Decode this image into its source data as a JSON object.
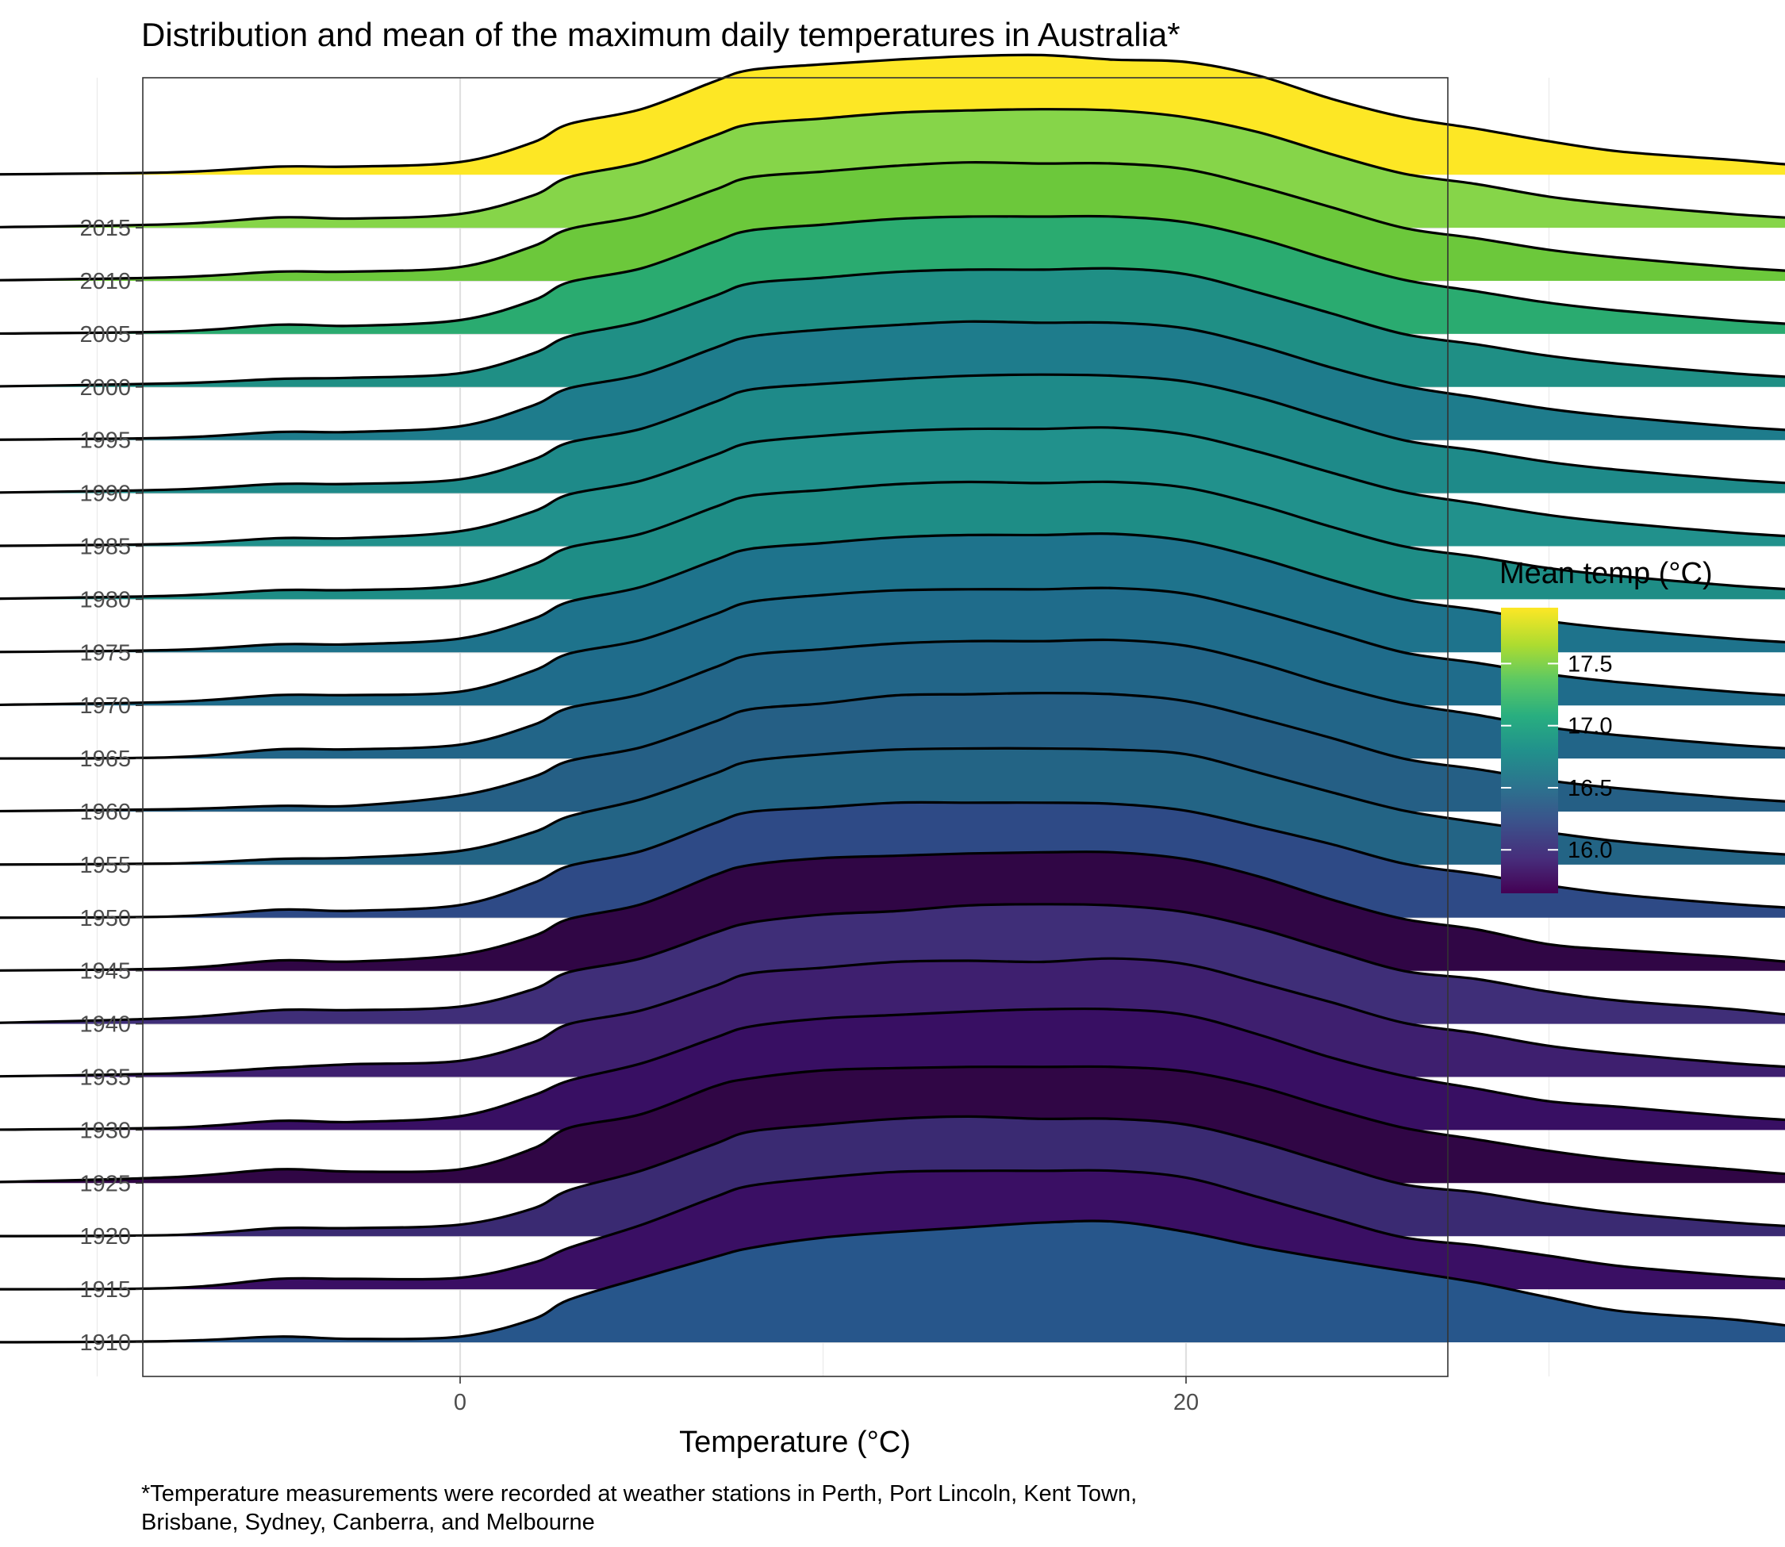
{
  "chart_data": {
    "type": "ridgeline",
    "title": "Distribution and mean of the maximum daily temperatures in Australia*",
    "xlabel": "Temperature (°C)",
    "ylabel": "",
    "caption_lines": [
      "*Temperature measurements were recorded at weather stations in Perth, Port Lincoln, Kent Town,",
      "Brisbane, Sydney, Canberra, and Melbourne"
    ],
    "xlim": [
      -17.5,
      54
    ],
    "x_ticks": [
      0,
      20,
      40
    ],
    "x_minor_ticks": [
      -10,
      10,
      30,
      50
    ],
    "density_range": [
      -14,
      51
    ],
    "grid": true,
    "theme": "bw",
    "legend": {
      "title": "Mean temp (°C)",
      "position": "right",
      "range": [
        15.65,
        17.95
      ],
      "ticks": [
        16.0,
        16.5,
        17.0,
        17.5
      ],
      "tick_labels": [
        "16.0",
        "16.5",
        "17.0",
        "17.5"
      ],
      "colormap": "viridis"
    },
    "density_x": [
      -14,
      -8,
      -5,
      -3,
      0,
      2,
      3,
      5,
      7,
      8,
      10,
      12,
      14,
      16,
      18,
      20,
      22,
      24,
      26,
      28,
      30,
      32,
      35,
      37,
      40,
      45,
      51
    ],
    "series": [
      {
        "name": "1910",
        "mean_temp": 16.3,
        "color": "#27568b",
        "density": [
          0,
          0.01,
          0.05,
          0.03,
          0.05,
          0.2,
          0.37,
          0.56,
          0.74,
          0.82,
          0.91,
          0.96,
          1.0,
          1.04,
          1.05,
          0.96,
          0.83,
          0.72,
          0.62,
          0.52,
          0.39,
          0.27,
          0.2,
          0.13,
          0.03,
          0,
          0
        ]
      },
      {
        "name": "1915",
        "mean_temp": 15.8,
        "color": "#3a0f64",
        "density": [
          0,
          0.01,
          0.09,
          0.09,
          0.1,
          0.23,
          0.36,
          0.56,
          0.8,
          0.9,
          0.97,
          1.02,
          1.03,
          1.03,
          1.03,
          0.97,
          0.8,
          0.62,
          0.45,
          0.38,
          0.29,
          0.2,
          0.12,
          0.08,
          0.03,
          0,
          0
        ]
      },
      {
        "name": "1920",
        "mean_temp": 16.0,
        "color": "#3a2a72",
        "density": [
          0,
          0.01,
          0.07,
          0.07,
          0.1,
          0.24,
          0.4,
          0.57,
          0.8,
          0.91,
          0.97,
          1.02,
          1.04,
          1.02,
          1.02,
          0.97,
          0.82,
          0.63,
          0.45,
          0.38,
          0.28,
          0.2,
          0.12,
          0.08,
          0.03,
          0,
          0
        ]
      },
      {
        "name": "1925",
        "mean_temp": 15.75,
        "color": "#300645",
        "density": [
          0,
          0.05,
          0.12,
          0.1,
          0.12,
          0.3,
          0.48,
          0.6,
          0.84,
          0.91,
          0.98,
          1.0,
          1.01,
          1.01,
          1.01,
          0.97,
          0.84,
          0.65,
          0.48,
          0.38,
          0.28,
          0.2,
          0.12,
          0.07,
          0.03,
          0,
          0
        ]
      },
      {
        "name": "1930",
        "mean_temp": 15.8,
        "color": "#380f63",
        "density": [
          0,
          0.02,
          0.08,
          0.07,
          0.12,
          0.3,
          0.43,
          0.58,
          0.8,
          0.9,
          0.97,
          1.0,
          1.03,
          1.05,
          1.05,
          1.0,
          0.83,
          0.63,
          0.47,
          0.36,
          0.25,
          0.2,
          0.12,
          0.08,
          0.03,
          0,
          0
        ]
      },
      {
        "name": "1935",
        "mean_temp": 15.9,
        "color": "#3e1f6f",
        "density": [
          0,
          0.03,
          0.08,
          0.11,
          0.14,
          0.3,
          0.46,
          0.58,
          0.79,
          0.9,
          0.95,
          1.0,
          1.01,
          1.0,
          1.03,
          0.98,
          0.82,
          0.65,
          0.47,
          0.38,
          0.27,
          0.2,
          0.12,
          0.08,
          0.03,
          0,
          0
        ]
      },
      {
        "name": "1940",
        "mean_temp": 16.05,
        "color": "#3f2e78",
        "density": [
          0,
          0.05,
          0.12,
          0.12,
          0.15,
          0.3,
          0.45,
          0.57,
          0.79,
          0.88,
          0.95,
          0.98,
          1.03,
          1.04,
          1.03,
          0.97,
          0.83,
          0.64,
          0.46,
          0.39,
          0.28,
          0.2,
          0.13,
          0.07,
          0.03,
          0,
          0
        ]
      },
      {
        "name": "1945",
        "mean_temp": 15.7,
        "color": "#300645",
        "density": [
          0,
          0.02,
          0.09,
          0.08,
          0.14,
          0.3,
          0.45,
          0.58,
          0.83,
          0.92,
          0.98,
          1.0,
          1.02,
          1.03,
          1.03,
          0.97,
          0.82,
          0.62,
          0.45,
          0.36,
          0.23,
          0.18,
          0.12,
          0.07,
          0.03,
          0,
          0
        ]
      },
      {
        "name": "1950",
        "mean_temp": 16.2,
        "color": "#2e4a86",
        "density": [
          0,
          0.01,
          0.07,
          0.06,
          0.11,
          0.3,
          0.45,
          0.58,
          0.82,
          0.92,
          0.96,
          1.0,
          1.0,
          1.0,
          0.99,
          0.93,
          0.79,
          0.64,
          0.47,
          0.38,
          0.28,
          0.2,
          0.12,
          0.08,
          0.03,
          0,
          0
        ]
      },
      {
        "name": "1955",
        "mean_temp": 16.6,
        "color": "#236485",
        "density": [
          0,
          0.01,
          0.05,
          0.06,
          0.12,
          0.28,
          0.42,
          0.57,
          0.79,
          0.9,
          0.96,
          1.0,
          1.01,
          1.01,
          1.0,
          0.96,
          0.8,
          0.63,
          0.47,
          0.37,
          0.28,
          0.2,
          0.12,
          0.08,
          0.03,
          0,
          0
        ]
      },
      {
        "name": "1960",
        "mean_temp": 16.5,
        "color": "#255f85",
        "density": [
          0,
          0.02,
          0.05,
          0.05,
          0.14,
          0.3,
          0.44,
          0.56,
          0.78,
          0.89,
          0.94,
          1.01,
          1.02,
          1.03,
          1.02,
          0.96,
          0.81,
          0.64,
          0.46,
          0.37,
          0.27,
          0.2,
          0.12,
          0.08,
          0.03,
          0,
          0
        ]
      },
      {
        "name": "1965",
        "mean_temp": 16.65,
        "color": "#226588",
        "density": [
          0,
          0.01,
          0.08,
          0.08,
          0.12,
          0.29,
          0.44,
          0.56,
          0.79,
          0.9,
          0.95,
          1.0,
          1.02,
          1.02,
          1.03,
          0.98,
          0.83,
          0.64,
          0.48,
          0.38,
          0.27,
          0.2,
          0.12,
          0.08,
          0.03,
          0,
          0
        ]
      },
      {
        "name": "1970",
        "mean_temp": 16.75,
        "color": "#1f6c8b",
        "density": [
          0,
          0.03,
          0.09,
          0.09,
          0.12,
          0.3,
          0.45,
          0.57,
          0.79,
          0.9,
          0.96,
          1.0,
          1.01,
          1.01,
          1.02,
          0.97,
          0.82,
          0.64,
          0.46,
          0.37,
          0.27,
          0.2,
          0.12,
          0.08,
          0.03,
          0,
          0
        ]
      },
      {
        "name": "1975",
        "mean_temp": 16.8,
        "color": "#1e738c",
        "density": [
          0,
          0.02,
          0.07,
          0.07,
          0.12,
          0.29,
          0.44,
          0.57,
          0.8,
          0.9,
          0.95,
          1.0,
          1.02,
          1.02,
          1.03,
          0.97,
          0.82,
          0.63,
          0.46,
          0.37,
          0.27,
          0.2,
          0.12,
          0.08,
          0.03,
          0,
          0
        ]
      },
      {
        "name": "1980",
        "mean_temp": 17.05,
        "color": "#1e8d86",
        "density": [
          0,
          0.03,
          0.08,
          0.08,
          0.12,
          0.3,
          0.45,
          0.57,
          0.8,
          0.9,
          0.95,
          1.0,
          1.02,
          1.01,
          1.02,
          0.97,
          0.82,
          0.63,
          0.46,
          0.37,
          0.27,
          0.2,
          0.12,
          0.08,
          0.03,
          0,
          0
        ]
      },
      {
        "name": "1985",
        "mean_temp": 17.1,
        "color": "#21918c",
        "density": [
          0,
          0.02,
          0.07,
          0.07,
          0.13,
          0.3,
          0.45,
          0.57,
          0.79,
          0.9,
          0.96,
          1.0,
          1.02,
          1.02,
          1.03,
          0.97,
          0.82,
          0.64,
          0.47,
          0.37,
          0.27,
          0.2,
          0.12,
          0.08,
          0.03,
          0,
          0
        ]
      },
      {
        "name": "1990",
        "mean_temp": 17.0,
        "color": "#1e8a89",
        "density": [
          0,
          0.03,
          0.08,
          0.08,
          0.12,
          0.29,
          0.44,
          0.56,
          0.79,
          0.9,
          0.95,
          0.99,
          1.02,
          1.03,
          1.02,
          0.97,
          0.83,
          0.64,
          0.46,
          0.37,
          0.27,
          0.2,
          0.12,
          0.08,
          0.03,
          0,
          0
        ]
      },
      {
        "name": "1995",
        "mean_temp": 16.85,
        "color": "#1e7c8c",
        "density": [
          0,
          0.02,
          0.07,
          0.07,
          0.12,
          0.3,
          0.45,
          0.57,
          0.8,
          0.9,
          0.96,
          1.0,
          1.03,
          1.02,
          1.02,
          0.97,
          0.82,
          0.63,
          0.47,
          0.37,
          0.27,
          0.2,
          0.12,
          0.08,
          0.03,
          0,
          0
        ]
      },
      {
        "name": "2000",
        "mean_temp": 17.05,
        "color": "#1f8f85",
        "density": [
          0,
          0.03,
          0.07,
          0.08,
          0.12,
          0.29,
          0.44,
          0.57,
          0.79,
          0.9,
          0.95,
          1.0,
          1.02,
          1.02,
          1.03,
          0.98,
          0.82,
          0.64,
          0.46,
          0.37,
          0.27,
          0.2,
          0.12,
          0.08,
          0.03,
          0,
          0
        ]
      },
      {
        "name": "2005",
        "mean_temp": 17.25,
        "color": "#2aab70",
        "density": [
          0,
          0.02,
          0.08,
          0.07,
          0.12,
          0.29,
          0.45,
          0.57,
          0.8,
          0.9,
          0.95,
          1.0,
          1.02,
          1.02,
          1.02,
          0.97,
          0.83,
          0.64,
          0.47,
          0.37,
          0.27,
          0.2,
          0.12,
          0.08,
          0.03,
          0,
          0
        ]
      },
      {
        "name": "2010",
        "mean_temp": 17.5,
        "color": "#6cc83b",
        "density": [
          0,
          0.03,
          0.08,
          0.08,
          0.12,
          0.3,
          0.45,
          0.57,
          0.79,
          0.9,
          0.95,
          1.0,
          1.03,
          1.02,
          1.02,
          0.97,
          0.82,
          0.64,
          0.46,
          0.37,
          0.27,
          0.2,
          0.12,
          0.08,
          0.03,
          0,
          0
        ]
      },
      {
        "name": "2015",
        "mean_temp": 17.6,
        "color": "#86d549",
        "density": [
          0,
          0.03,
          0.09,
          0.08,
          0.12,
          0.28,
          0.44,
          0.57,
          0.8,
          0.9,
          0.95,
          1.0,
          1.02,
          1.03,
          1.02,
          0.96,
          0.83,
          0.64,
          0.47,
          0.38,
          0.27,
          0.2,
          0.12,
          0.08,
          0.03,
          0,
          0
        ]
      },
      {
        "name": "",
        "mean_temp": 17.95,
        "color": "#fde725",
        "density": [
          0,
          0.02,
          0.07,
          0.07,
          0.11,
          0.28,
          0.44,
          0.57,
          0.81,
          0.91,
          0.96,
          1.0,
          1.03,
          1.04,
          1.0,
          0.98,
          0.86,
          0.66,
          0.5,
          0.4,
          0.29,
          0.2,
          0.13,
          0.08,
          0.03,
          0,
          0
        ]
      }
    ]
  }
}
